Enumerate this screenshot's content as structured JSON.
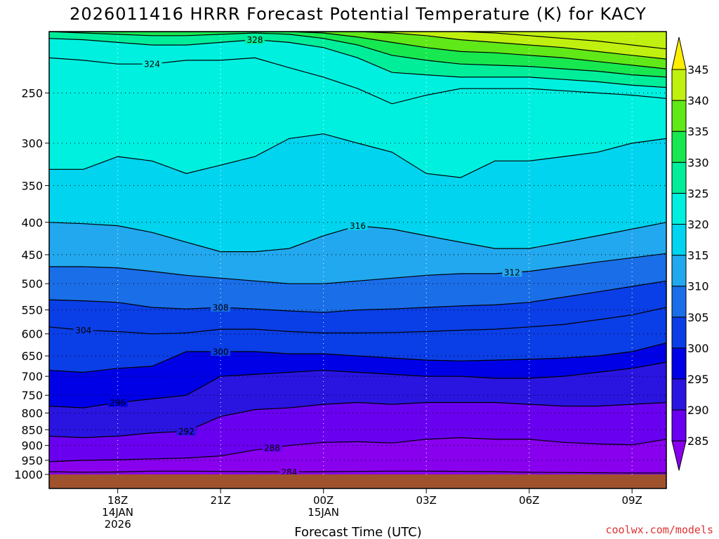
{
  "title": "2026011416 HRRR Forecast Potential Temperature (K) for KACY",
  "credit": "coolwx.com/models",
  "xlabel": "Forecast Time (UTC)",
  "colors": {
    "ground": "#a0522d",
    "contour": "#000000",
    "grid": "#000000"
  },
  "chart_data": {
    "type": "heatmap",
    "title": "2026011416 HRRR Forecast Potential Temperature (K) for KACY",
    "xlabel": "Forecast Time (UTC)",
    "ylabel": "",
    "y_axis": {
      "unit": "hPa",
      "scale": "log",
      "reversed": true,
      "ylim": [
        1000,
        200
      ],
      "ticks": [
        250,
        300,
        350,
        400,
        450,
        500,
        550,
        600,
        650,
        700,
        750,
        800,
        850,
        900,
        950,
        1000
      ]
    },
    "x_axis": {
      "range_hours": [
        16,
        34
      ],
      "ticks": [
        {
          "hour": 18,
          "label": [
            "18Z",
            "14JAN",
            "2026"
          ]
        },
        {
          "hour": 21,
          "label": [
            "21Z"
          ]
        },
        {
          "hour": 24,
          "label": [
            "00Z",
            "15JAN"
          ]
        },
        {
          "hour": 27,
          "label": [
            "03Z"
          ]
        },
        {
          "hour": 30,
          "label": [
            "06Z"
          ]
        },
        {
          "hour": 33,
          "label": [
            "09Z"
          ]
        }
      ]
    },
    "grid": "dotted",
    "colorbar": {
      "levels": [
        285,
        290,
        295,
        300,
        305,
        310,
        315,
        320,
        325,
        330,
        335,
        340,
        345
      ],
      "colors": [
        "#8800ee",
        "#6a00f0",
        "#2a14e0",
        "#0000e6",
        "#0a3ee6",
        "#1a6ee8",
        "#22a8ee",
        "#00d4ee",
        "#00f0e0",
        "#00ee9a",
        "#18e850",
        "#60e818",
        "#c0f010",
        "#ffee00"
      ],
      "tick_labels": [
        "285",
        "290",
        "295",
        "300",
        "305",
        "310",
        "315",
        "320",
        "325",
        "330",
        "335",
        "340",
        "345"
      ]
    },
    "times": [
      16,
      17,
      18,
      19,
      20,
      21,
      22,
      23,
      24,
      25,
      26,
      27,
      28,
      29,
      30,
      31,
      32,
      33,
      34
    ],
    "contours": [
      {
        "level": 284,
        "label": "284",
        "label_at": 23.0,
        "p": [
          990,
          992,
          991,
          988,
          988,
          989,
          990,
          991,
          990,
          989,
          988,
          988,
          989,
          990,
          992,
          993,
          994,
          995,
          995
        ]
      },
      {
        "level": 288,
        "label": "288",
        "label_at": 22.5,
        "p": [
          955,
          950,
          948,
          945,
          942,
          935,
          915,
          900,
          890,
          888,
          892,
          880,
          875,
          880,
          880,
          890,
          895,
          898,
          880
        ]
      },
      {
        "level": 292,
        "label": "292",
        "label_at": 20.0,
        "p": [
          870,
          875,
          870,
          860,
          855,
          810,
          790,
          785,
          775,
          770,
          775,
          770,
          770,
          770,
          775,
          780,
          780,
          775,
          770
        ]
      },
      {
        "level": 296,
        "label": "296",
        "label_at": 18.0,
        "p": [
          780,
          785,
          770,
          760,
          750,
          700,
          695,
          690,
          685,
          690,
          695,
          700,
          700,
          705,
          705,
          700,
          690,
          680,
          665
        ]
      },
      {
        "level": 300,
        "label": "300",
        "label_at": 21.0,
        "p": [
          685,
          690,
          680,
          675,
          640,
          640,
          640,
          645,
          645,
          650,
          655,
          660,
          662,
          660,
          658,
          655,
          650,
          640,
          620
        ]
      },
      {
        "level": 304,
        "label": "304",
        "label_at": 17.0,
        "p": [
          585,
          592,
          595,
          600,
          598,
          590,
          590,
          595,
          598,
          598,
          597,
          595,
          592,
          590,
          585,
          580,
          570,
          560,
          545
        ]
      },
      {
        "level": 308,
        "label": "308",
        "label_at": 21.0,
        "p": [
          530,
          532,
          535,
          545,
          548,
          545,
          548,
          552,
          555,
          550,
          548,
          545,
          542,
          540,
          535,
          525,
          515,
          505,
          495
        ]
      },
      {
        "level": 312,
        "label": "312",
        "label_at": 29.5,
        "p": [
          470,
          470,
          472,
          478,
          485,
          490,
          495,
          500,
          500,
          495,
          490,
          485,
          482,
          482,
          478,
          470,
          462,
          455,
          448
        ]
      },
      {
        "level": 316,
        "label": "316",
        "label_at": 25.0,
        "p": [
          400,
          402,
          405,
          415,
          430,
          445,
          445,
          440,
          420,
          405,
          410,
          420,
          430,
          440,
          440,
          430,
          420,
          410,
          400
        ]
      },
      {
        "level": 320,
        "label": "",
        "label_at": 0,
        "p": [
          330,
          330,
          315,
          320,
          335,
          325,
          315,
          295,
          290,
          300,
          310,
          335,
          340,
          320,
          320,
          315,
          310,
          300,
          295
        ]
      },
      {
        "level": 324,
        "label": "324",
        "label_at": 19.0,
        "p": [
          220,
          222,
          225,
          225,
          222,
          222,
          220,
          228,
          236,
          246,
          260,
          252,
          246,
          246,
          246,
          248,
          250,
          252,
          255
        ]
      },
      {
        "level": 328,
        "label": "328",
        "label_at": 22.0,
        "p": [
          205,
          206,
          208,
          210,
          210,
          208,
          206,
          208,
          212,
          220,
          232,
          234,
          236,
          236,
          236,
          238,
          240,
          243,
          245
        ]
      },
      {
        "level": 332,
        "label": "",
        "label_at": 0,
        "p": [
          200,
          201,
          202,
          203,
          203,
          202,
          201,
          202,
          205,
          210,
          218,
          222,
          225,
          226,
          227,
          229,
          231,
          234,
          236
        ]
      },
      {
        "level": 336,
        "label": "",
        "label_at": 0,
        "p": [
          200,
          200,
          200,
          200,
          200,
          200,
          200,
          200,
          201,
          204,
          208,
          212,
          215,
          216,
          218,
          220,
          223,
          226,
          229
        ]
      },
      {
        "level": 340,
        "label": "",
        "label_at": 0,
        "p": [
          200,
          200,
          200,
          200,
          200,
          200,
          200,
          200,
          200,
          200,
          201,
          203,
          206,
          208,
          210,
          212,
          215,
          218,
          221
        ]
      },
      {
        "level": 344,
        "label": "",
        "label_at": 0,
        "p": [
          200,
          200,
          200,
          200,
          200,
          200,
          200,
          200,
          200,
          200,
          200,
          200,
          200,
          201,
          203,
          205,
          207,
          210,
          213
        ]
      }
    ]
  }
}
